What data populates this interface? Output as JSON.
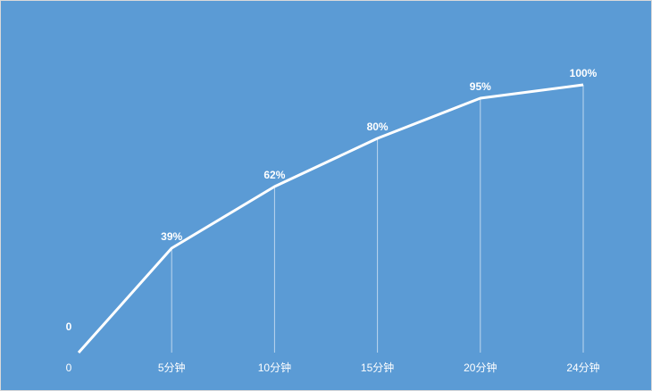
{
  "chart_data": {
    "type": "line",
    "categories": [
      "0",
      "5分钟",
      "10分钟",
      "15分钟",
      "20分钟",
      "24分钟"
    ],
    "series": [
      {
        "color": "#ffffff",
        "values": [
          0,
          39,
          62,
          80,
          95,
          100
        ],
        "value_labels": [
          "0",
          "39%",
          "62%",
          "80%",
          "95%",
          "100%"
        ]
      }
    ],
    "ylim": [
      0,
      100
    ],
    "drop_lines": true,
    "background": "#5b9bd5"
  }
}
